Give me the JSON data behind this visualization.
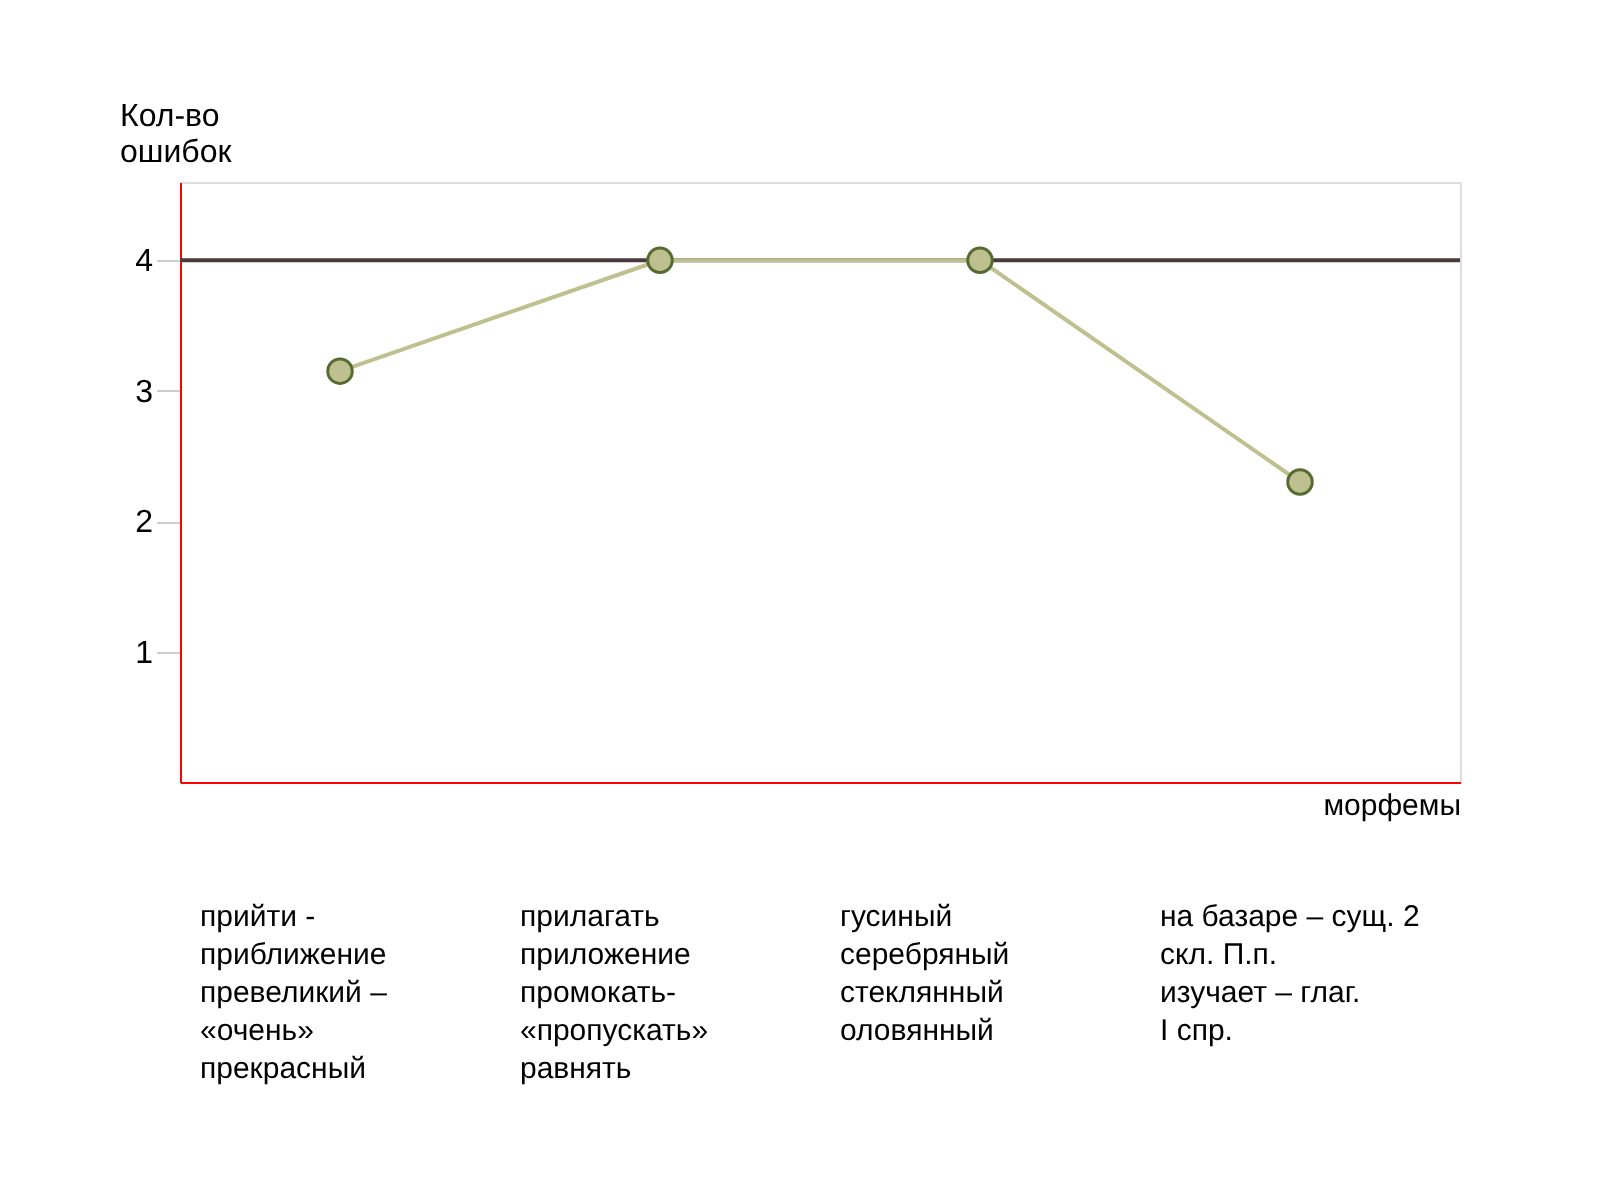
{
  "chart_data": {
    "type": "line",
    "xlabel": "морфемы",
    "ylabel": "Кол-во ошибок",
    "categories": [
      null,
      null,
      null,
      null
    ],
    "series": [
      {
        "color": "#bfc08f",
        "values": [
          3.15,
          4,
          4,
          2.3
        ]
      }
    ],
    "ylim": [
      0,
      4.6
    ],
    "yticks": [
      1,
      2,
      3,
      4
    ],
    "tick_labels": "y",
    "grid": false,
    "marker": "circle",
    "ref_lines": [
      {
        "axis": "y",
        "value": 4,
        "color": "#4a3a3a"
      }
    ],
    "annotations": [
      "прийти -\nприближение\nпревеликий –\n«очень»\nпрекрасный",
      "прилагать\nприложение\nпромокать-\n«пропускать»\nравнять",
      "гусиный\nсеребряный\nстеклянный\nоловянный",
      "на  базаре – сущ. 2\nскл. П.п.\nизучает – глаг.\nI спр."
    ]
  }
}
